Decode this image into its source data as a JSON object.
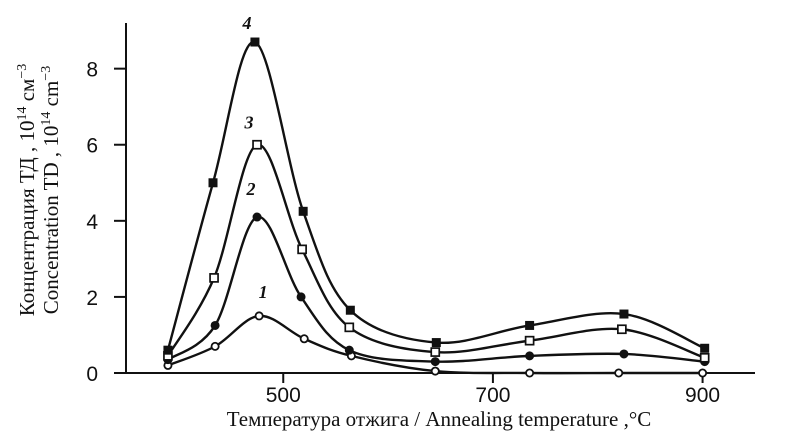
{
  "chart_data": {
    "type": "line",
    "x_ticks": [
      500,
      700,
      900
    ],
    "y_ticks": [
      0,
      2,
      4,
      6,
      8
    ],
    "xlim": [
      350,
      950
    ],
    "ylim": [
      0,
      9.2
    ],
    "xlabel": "Температура отжига / Annealing temperature ,°C",
    "ylabel_ru": {
      "text": "Концентрация ТД , 10",
      "exp": "14",
      "unit": " см",
      "unit_exp": "−3"
    },
    "ylabel_en": {
      "text": "Concentration TD , 10",
      "exp": "14",
      "unit": " cm",
      "unit_exp": "−3"
    },
    "series": [
      {
        "name": "1",
        "marker": "open-circle",
        "points": [
          {
            "x": 390,
            "y": 0.2
          },
          {
            "x": 435,
            "y": 0.7
          },
          {
            "x": 477,
            "y": 1.5
          },
          {
            "x": 520,
            "y": 0.9
          },
          {
            "x": 565,
            "y": 0.45
          },
          {
            "x": 645,
            "y": 0.05
          },
          {
            "x": 735,
            "y": 0.0
          },
          {
            "x": 820,
            "y": 0.0
          },
          {
            "x": 900,
            "y": 0.0
          }
        ]
      },
      {
        "name": "2",
        "marker": "filled-circle",
        "points": [
          {
            "x": 390,
            "y": 0.35
          },
          {
            "x": 435,
            "y": 1.25
          },
          {
            "x": 475,
            "y": 4.1
          },
          {
            "x": 517,
            "y": 2.0
          },
          {
            "x": 563,
            "y": 0.6
          },
          {
            "x": 645,
            "y": 0.3
          },
          {
            "x": 735,
            "y": 0.45
          },
          {
            "x": 825,
            "y": 0.5
          },
          {
            "x": 902,
            "y": 0.3
          }
        ]
      },
      {
        "name": "3",
        "marker": "open-square",
        "points": [
          {
            "x": 390,
            "y": 0.45
          },
          {
            "x": 434,
            "y": 2.5
          },
          {
            "x": 475,
            "y": 6.0
          },
          {
            "x": 518,
            "y": 3.25
          },
          {
            "x": 563,
            "y": 1.2
          },
          {
            "x": 645,
            "y": 0.55
          },
          {
            "x": 735,
            "y": 0.85
          },
          {
            "x": 823,
            "y": 1.15
          },
          {
            "x": 902,
            "y": 0.4
          }
        ]
      },
      {
        "name": "4",
        "marker": "filled-square",
        "points": [
          {
            "x": 390,
            "y": 0.6
          },
          {
            "x": 433,
            "y": 5.0
          },
          {
            "x": 473,
            "y": 8.7
          },
          {
            "x": 519,
            "y": 4.25
          },
          {
            "x": 564,
            "y": 1.65
          },
          {
            "x": 646,
            "y": 0.8
          },
          {
            "x": 735,
            "y": 1.25
          },
          {
            "x": 825,
            "y": 1.55
          },
          {
            "x": 902,
            "y": 0.65
          }
        ]
      }
    ]
  }
}
